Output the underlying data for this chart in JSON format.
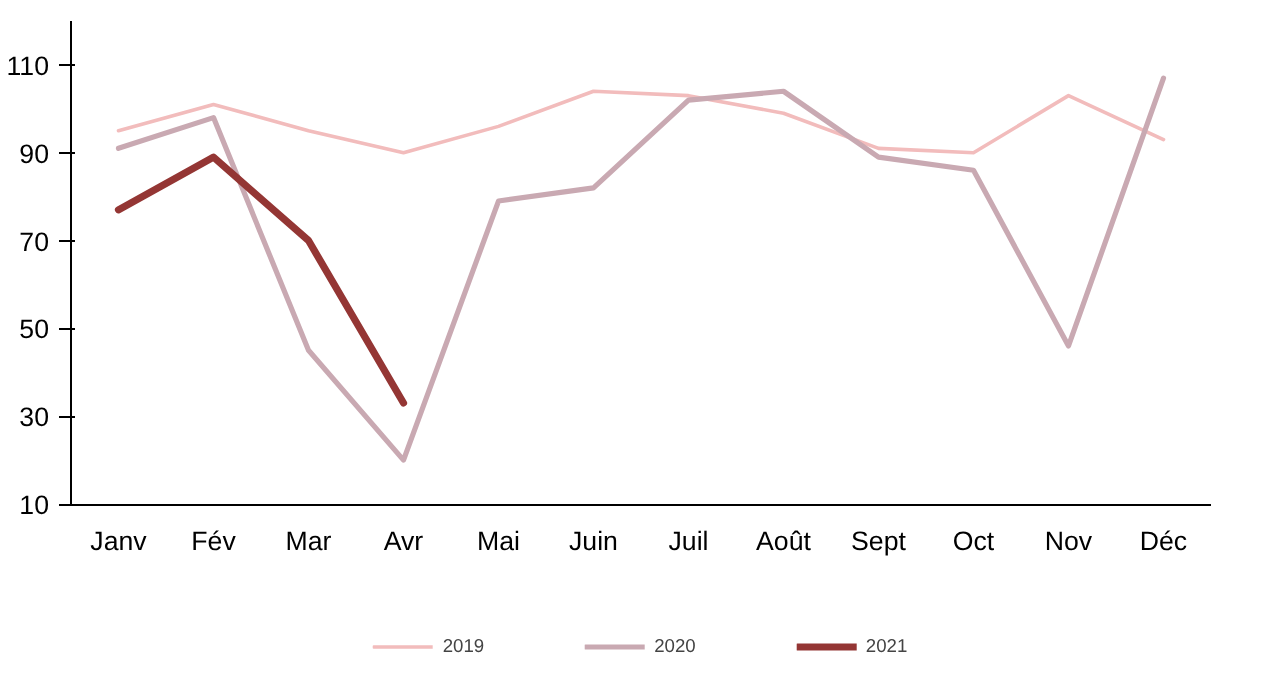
{
  "chart_data": {
    "type": "line",
    "categories": [
      "Janv",
      "Fév",
      "Mar",
      "Avr",
      "Mai",
      "Juin",
      "Juil",
      "Août",
      "Sept",
      "Oct",
      "Nov",
      "Déc"
    ],
    "series": [
      {
        "name": "2019",
        "color": "#f2bcbc",
        "values": [
          95,
          101,
          95,
          90,
          96,
          104,
          103,
          99,
          91,
          90,
          103,
          93
        ]
      },
      {
        "name": "2020",
        "color": "#c9a9b2",
        "values": [
          91,
          98,
          45,
          20,
          79,
          82,
          102,
          104,
          89,
          86,
          46,
          107
        ]
      },
      {
        "name": "2021",
        "color": "#943634",
        "values": [
          77,
          89,
          70,
          33,
          null,
          null,
          null,
          null,
          null,
          null,
          null,
          null
        ]
      }
    ],
    "ylim": [
      10,
      120
    ],
    "yticks": [
      10,
      30,
      50,
      70,
      90,
      110
    ],
    "grid": false,
    "legend": "bottom",
    "marker": "none",
    "line_style": "solid"
  }
}
